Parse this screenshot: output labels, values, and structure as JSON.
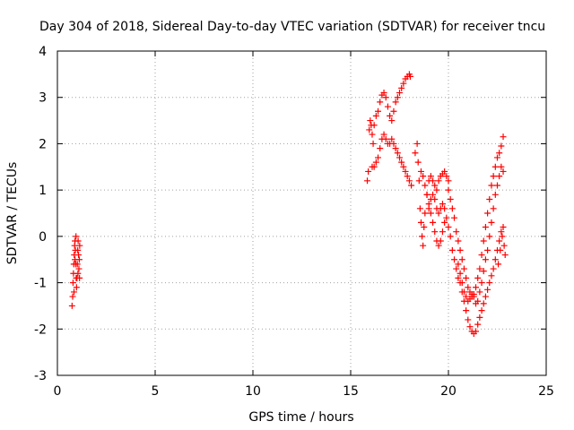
{
  "chart_data": {
    "type": "scatter",
    "title": "Day 304 of 2018, Sidereal Day-to-day VTEC variation (SDTVAR) for receiver tncu",
    "xlabel": "GPS time / hours",
    "ylabel": "SDTVAR / TECUs",
    "xlim": [
      0,
      25
    ],
    "ylim": [
      -3,
      4
    ],
    "xticks": [
      "0",
      "5",
      "10",
      "15",
      "20",
      "25"
    ],
    "yticks": [
      "-3",
      "-2",
      "-1",
      "0",
      "1",
      "2",
      "3",
      "4"
    ],
    "grid": true,
    "marker": "plus",
    "color": "#ff0000",
    "series": [
      {
        "points": [
          [
            0.75,
            -1.5
          ],
          [
            0.78,
            -1.3
          ],
          [
            0.8,
            -1.0
          ],
          [
            0.82,
            -0.8
          ],
          [
            0.84,
            -0.6
          ],
          [
            0.86,
            -0.4
          ],
          [
            0.88,
            -0.2
          ],
          [
            0.9,
            -0.1
          ],
          [
            0.92,
            -0.3
          ],
          [
            0.94,
            -0.6
          ],
          [
            0.96,
            -0.9
          ],
          [
            0.98,
            -1.1
          ],
          [
            1.0,
            -0.9
          ],
          [
            1.02,
            -0.6
          ],
          [
            1.04,
            -0.3
          ],
          [
            1.06,
            -0.1
          ],
          [
            1.08,
            -0.4
          ],
          [
            1.1,
            -0.7
          ],
          [
            1.12,
            -0.5
          ],
          [
            1.14,
            -0.2
          ],
          [
            0.85,
            -1.2
          ],
          [
            0.95,
            0.0
          ],
          [
            1.05,
            -0.8
          ],
          [
            1.13,
            -0.9
          ],
          [
            0.9,
            -0.5
          ],
          [
            15.85,
            1.2
          ],
          [
            15.9,
            1.4
          ],
          [
            15.95,
            2.3
          ],
          [
            16.0,
            2.5
          ],
          [
            16.05,
            2.4
          ],
          [
            16.1,
            2.2
          ],
          [
            16.15,
            2.0
          ],
          [
            16.2,
            2.4
          ],
          [
            16.3,
            2.6
          ],
          [
            16.4,
            2.7
          ],
          [
            16.5,
            2.9
          ],
          [
            16.6,
            3.05
          ],
          [
            16.7,
            3.1
          ],
          [
            16.8,
            3.0
          ],
          [
            16.9,
            2.8
          ],
          [
            17.0,
            2.6
          ],
          [
            17.1,
            2.5
          ],
          [
            17.2,
            2.7
          ],
          [
            17.3,
            2.9
          ],
          [
            17.4,
            3.0
          ],
          [
            17.5,
            3.1
          ],
          [
            17.6,
            3.2
          ],
          [
            17.7,
            3.3
          ],
          [
            17.8,
            3.4
          ],
          [
            17.9,
            3.45
          ],
          [
            18.0,
            3.5
          ],
          [
            18.05,
            3.45
          ],
          [
            16.1,
            1.5
          ],
          [
            16.2,
            1.5
          ],
          [
            16.3,
            1.6
          ],
          [
            16.4,
            1.7
          ],
          [
            16.5,
            1.9
          ],
          [
            16.6,
            2.1
          ],
          [
            16.7,
            2.2
          ],
          [
            16.8,
            2.1
          ],
          [
            16.9,
            2.0
          ],
          [
            17.0,
            2.0
          ],
          [
            17.1,
            2.1
          ],
          [
            17.2,
            2.0
          ],
          [
            17.3,
            1.9
          ],
          [
            17.4,
            1.8
          ],
          [
            17.5,
            1.7
          ],
          [
            17.6,
            1.6
          ],
          [
            17.7,
            1.5
          ],
          [
            17.8,
            1.4
          ],
          [
            17.9,
            1.3
          ],
          [
            18.0,
            1.2
          ],
          [
            18.1,
            1.1
          ],
          [
            18.3,
            1.8
          ],
          [
            18.4,
            2.0
          ],
          [
            18.45,
            1.6
          ],
          [
            18.5,
            1.2
          ],
          [
            18.55,
            0.6
          ],
          [
            18.6,
            0.3
          ],
          [
            18.65,
            0.0
          ],
          [
            18.7,
            -0.2
          ],
          [
            18.75,
            0.2
          ],
          [
            18.8,
            0.5
          ],
          [
            18.9,
            0.9
          ],
          [
            19.0,
            1.2
          ],
          [
            19.1,
            1.3
          ],
          [
            19.2,
            1.2
          ],
          [
            19.3,
            1.1
          ],
          [
            19.4,
            1.0
          ],
          [
            19.5,
            1.2
          ],
          [
            19.6,
            1.3
          ],
          [
            19.7,
            1.35
          ],
          [
            19.8,
            1.4
          ],
          [
            19.9,
            1.3
          ],
          [
            20.0,
            1.2
          ],
          [
            18.6,
            1.4
          ],
          [
            18.7,
            1.3
          ],
          [
            18.8,
            1.1
          ],
          [
            18.9,
            0.9
          ],
          [
            19.0,
            0.7
          ],
          [
            19.1,
            0.5
          ],
          [
            19.2,
            0.3
          ],
          [
            19.3,
            0.1
          ],
          [
            19.4,
            -0.1
          ],
          [
            19.5,
            -0.2
          ],
          [
            19.6,
            -0.1
          ],
          [
            19.7,
            0.1
          ],
          [
            19.8,
            0.3
          ],
          [
            19.0,
            0.6
          ],
          [
            19.1,
            0.8
          ],
          [
            19.2,
            0.9
          ],
          [
            19.3,
            0.8
          ],
          [
            19.4,
            0.6
          ],
          [
            19.5,
            0.5
          ],
          [
            19.6,
            0.6
          ],
          [
            19.7,
            0.7
          ],
          [
            19.8,
            0.6
          ],
          [
            19.9,
            0.4
          ],
          [
            20.0,
            0.2
          ],
          [
            20.1,
            0.0
          ],
          [
            20.2,
            -0.3
          ],
          [
            20.3,
            -0.5
          ],
          [
            20.4,
            -0.7
          ],
          [
            20.5,
            -0.9
          ],
          [
            20.6,
            -1.0
          ],
          [
            20.7,
            -1.2
          ],
          [
            20.8,
            -1.4
          ],
          [
            20.9,
            -1.6
          ],
          [
            21.0,
            -1.8
          ],
          [
            21.1,
            -1.95
          ],
          [
            21.2,
            -2.05
          ],
          [
            21.3,
            -2.1
          ],
          [
            21.4,
            -2.05
          ],
          [
            21.5,
            -1.9
          ],
          [
            21.6,
            -1.75
          ],
          [
            21.7,
            -1.6
          ],
          [
            21.8,
            -1.45
          ],
          [
            21.9,
            -1.3
          ],
          [
            22.0,
            -1.15
          ],
          [
            22.1,
            -1.0
          ],
          [
            22.2,
            -0.85
          ],
          [
            22.3,
            -0.7
          ],
          [
            20.0,
            1.0
          ],
          [
            20.1,
            0.8
          ],
          [
            20.2,
            0.6
          ],
          [
            20.3,
            0.4
          ],
          [
            20.4,
            0.1
          ],
          [
            20.5,
            -0.1
          ],
          [
            20.6,
            -0.3
          ],
          [
            20.7,
            -0.5
          ],
          [
            20.8,
            -0.7
          ],
          [
            20.9,
            -0.9
          ],
          [
            21.0,
            -1.1
          ],
          [
            21.1,
            -1.2
          ],
          [
            21.2,
            -1.3
          ],
          [
            21.3,
            -1.25
          ],
          [
            21.4,
            -1.1
          ],
          [
            21.5,
            -0.9
          ],
          [
            21.6,
            -0.7
          ],
          [
            21.7,
            -0.4
          ],
          [
            21.8,
            -0.1
          ],
          [
            21.9,
            0.2
          ],
          [
            22.0,
            0.5
          ],
          [
            22.1,
            0.8
          ],
          [
            22.2,
            1.1
          ],
          [
            22.3,
            1.3
          ],
          [
            22.4,
            1.5
          ],
          [
            22.5,
            1.7
          ],
          [
            22.6,
            1.8
          ],
          [
            22.7,
            1.95
          ],
          [
            22.8,
            2.15
          ],
          [
            20.5,
            -0.6
          ],
          [
            20.6,
            -0.8
          ],
          [
            20.7,
            -1.0
          ],
          [
            20.8,
            -1.2
          ],
          [
            20.9,
            -1.3
          ],
          [
            21.0,
            -1.4
          ],
          [
            21.1,
            -1.35
          ],
          [
            21.2,
            -1.25
          ],
          [
            21.3,
            -1.3
          ],
          [
            21.4,
            -1.45
          ],
          [
            21.5,
            -1.4
          ],
          [
            21.6,
            -1.2
          ],
          [
            21.7,
            -1.0
          ],
          [
            21.8,
            -0.75
          ],
          [
            21.9,
            -0.5
          ],
          [
            22.0,
            -0.3
          ],
          [
            22.1,
            0.0
          ],
          [
            22.2,
            0.3
          ],
          [
            22.3,
            0.6
          ],
          [
            22.4,
            0.9
          ],
          [
            22.5,
            1.1
          ],
          [
            22.6,
            1.3
          ],
          [
            22.7,
            1.5
          ],
          [
            22.8,
            1.4
          ],
          [
            22.4,
            -0.5
          ],
          [
            22.5,
            -0.3
          ],
          [
            22.6,
            -0.1
          ],
          [
            22.7,
            0.1
          ],
          [
            22.8,
            0.2
          ],
          [
            22.85,
            -0.2
          ],
          [
            22.9,
            -0.4
          ],
          [
            22.75,
            0.0
          ],
          [
            22.65,
            -0.3
          ],
          [
            22.55,
            -0.6
          ]
        ]
      }
    ]
  }
}
